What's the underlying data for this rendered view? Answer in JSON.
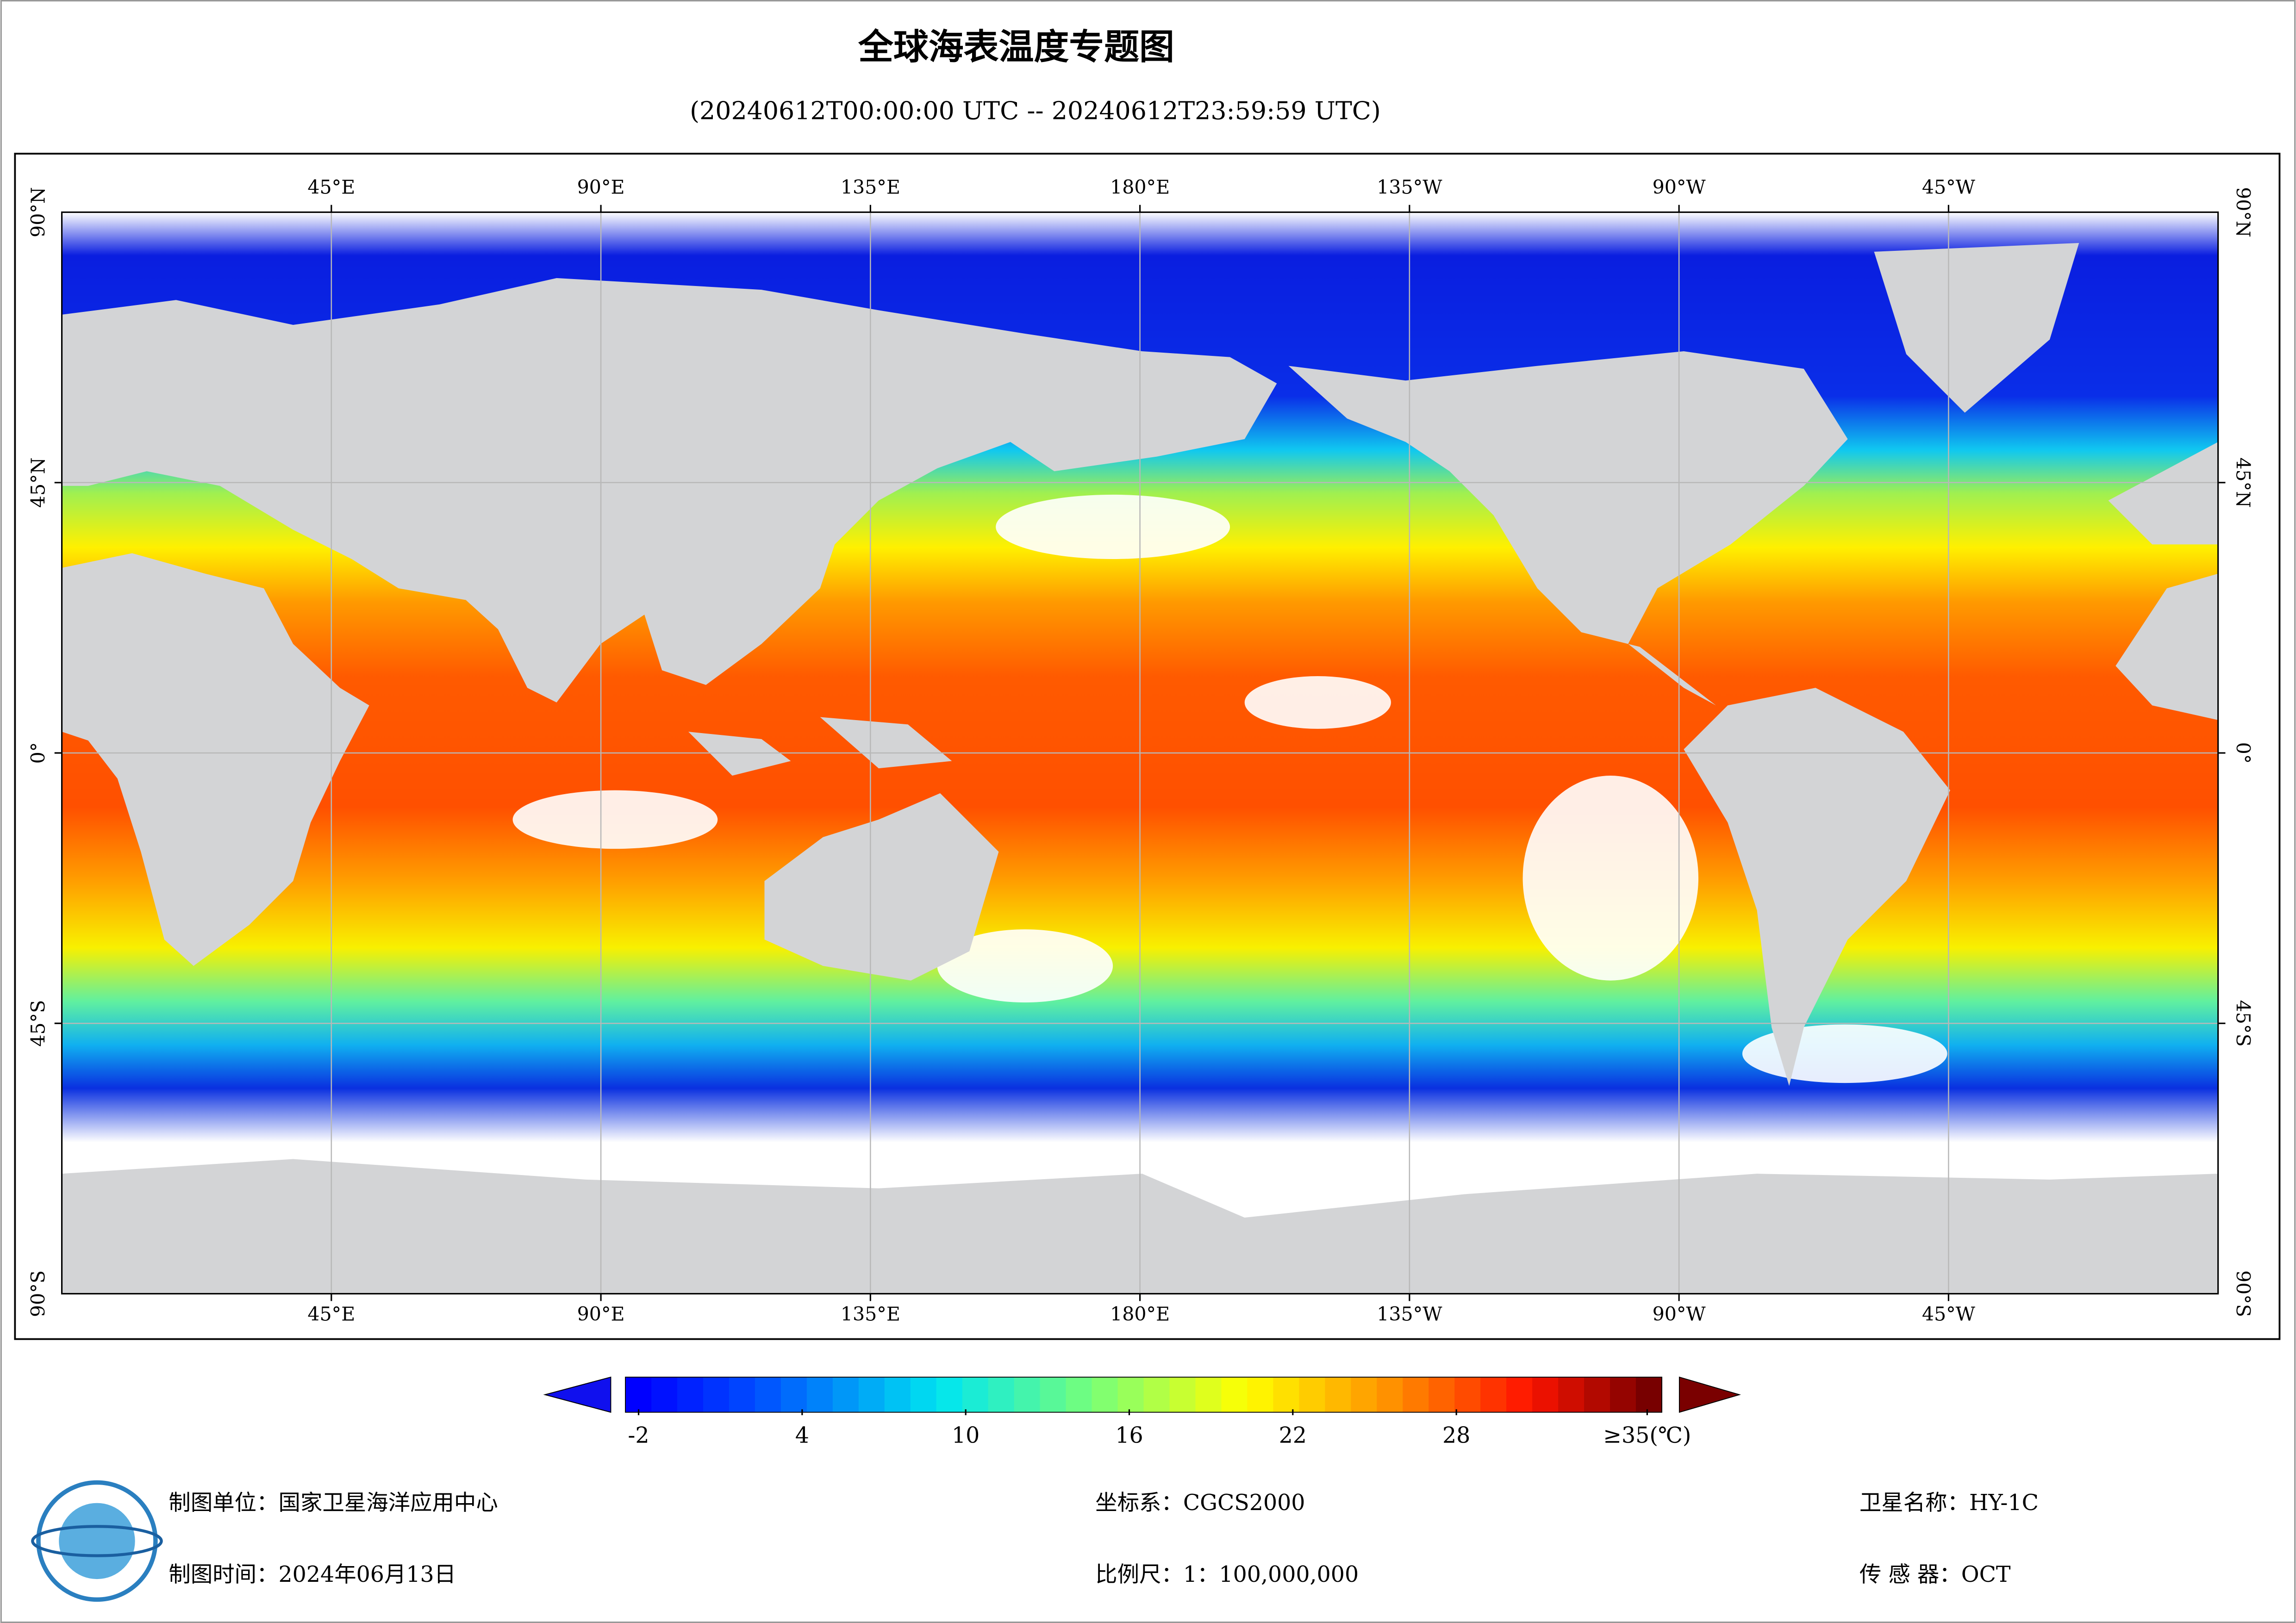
{
  "title": "全球海表温度专题图",
  "subtitle": "(20240612T00:00:00 UTC -- 20240612T23:59:59 UTC)",
  "map": {
    "lon_labels": [
      "45°E",
      "90°E",
      "135°E",
      "180°E",
      "135°W",
      "90°W",
      "45°W"
    ],
    "lat_labels": [
      "90°N",
      "45°N",
      "0°",
      "45°S",
      "90°S"
    ]
  },
  "colorbar": {
    "ticks": [
      -2,
      4,
      10,
      16,
      22,
      28,
      {
        "value": 35,
        "label": "≥35(℃)"
      }
    ]
  },
  "footer": {
    "producer": "制图单位：国家卫星海洋应用中心",
    "date": "制图时间：2024年06月13日",
    "crs": "坐标系：CGCS2000",
    "scale": "比例尺：1：100,000,000",
    "satellite": "卫星名称：HY-1C",
    "sensor": "传 感 器：OCT"
  }
}
